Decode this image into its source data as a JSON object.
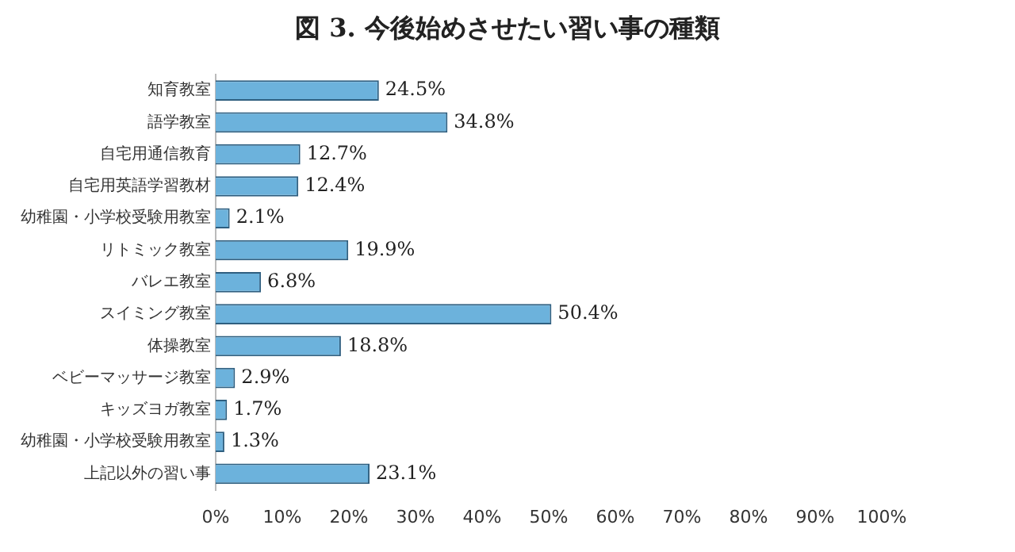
{
  "chart_data": {
    "type": "bar",
    "orientation": "horizontal",
    "title": "図 3.  今後始めさせたい習い事の種類",
    "categories": [
      "知育教室",
      "語学教室",
      "自宅用通信教育",
      "自宅用英語学習教材",
      "幼稚園・小学校受験用教室",
      "リトミック教室",
      "バレエ教室",
      "スイミング教室",
      "体操教室",
      "ベビーマッサージ教室",
      "キッズヨガ教室",
      "幼稚園・小学校受験用教室",
      "上記以外の習い事"
    ],
    "values": [
      24.5,
      34.8,
      12.7,
      12.4,
      2.1,
      19.9,
      6.8,
      50.4,
      18.8,
      2.9,
      1.7,
      1.3,
      23.1
    ],
    "value_labels": [
      "24.5%",
      "34.8%",
      "12.7%",
      "12.4%",
      "2.1%",
      "19.9%",
      "6.8%",
      "50.4%",
      "18.8%",
      "2.9%",
      "1.7%",
      "1.3%",
      "23.1%"
    ],
    "color": "#6cb2dc",
    "xlim": [
      0,
      100
    ],
    "xticks": [
      {
        "value": 0,
        "label": "0%"
      },
      {
        "value": 10,
        "label": "10%"
      },
      {
        "value": 20,
        "label": "20%"
      },
      {
        "value": 30,
        "label": "30%"
      },
      {
        "value": 40,
        "label": "40%"
      },
      {
        "value": 50,
        "label": "50%"
      },
      {
        "value": 60,
        "label": "60%"
      },
      {
        "value": 70,
        "label": "70%"
      },
      {
        "value": 80,
        "label": "80%"
      },
      {
        "value": 90,
        "label": "90%"
      },
      {
        "value": 100,
        "label": "100%"
      }
    ],
    "grid": false,
    "legend": false
  }
}
